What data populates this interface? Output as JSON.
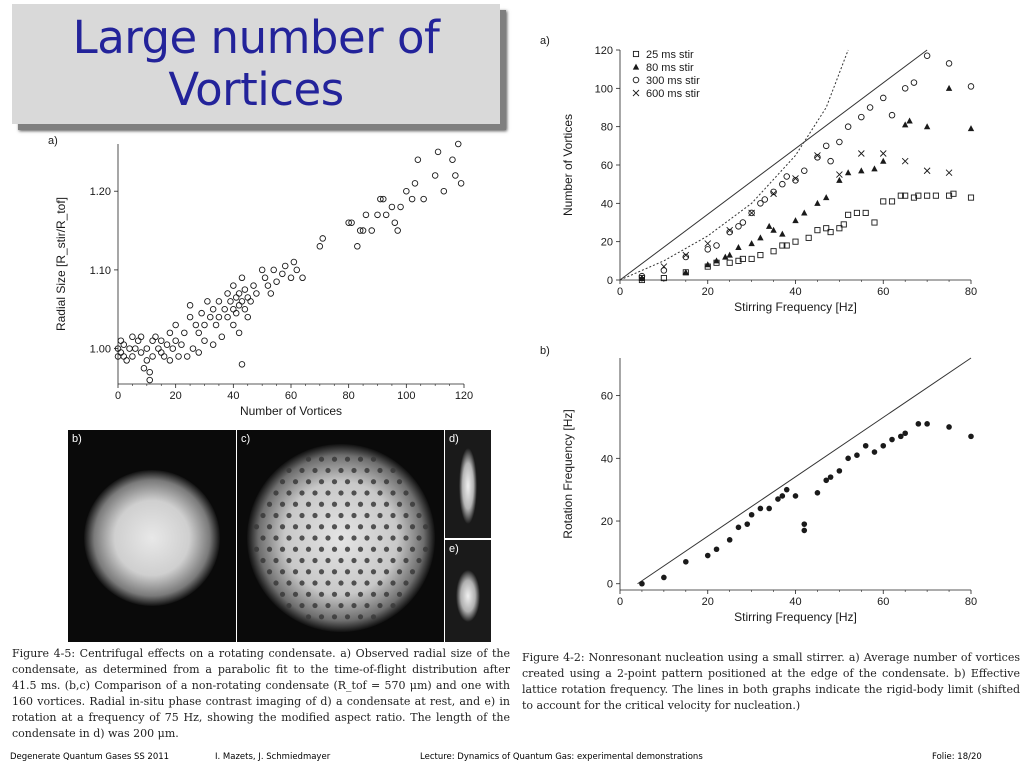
{
  "title": {
    "line1": "Large number of",
    "line2": "Vortices"
  },
  "colors": {
    "title": "#23239a",
    "title_box": "#d9d9d9",
    "shadow": "#7f7f7f",
    "marker": "#1a1a1a"
  },
  "chart_data": [
    {
      "id": "radial-size",
      "type": "scatter",
      "panel_label": "a)",
      "xlabel": "Number of Vortices",
      "ylabel": "Radial Size [R_stir/R_tof]",
      "xlim": [
        0,
        120
      ],
      "ylim": [
        0.955,
        1.26
      ],
      "xticks": [
        "0",
        "20",
        "40",
        "60",
        "80",
        "100",
        "120"
      ],
      "yticks": [
        "1.00",
        "1.10",
        "1.20"
      ],
      "marker": "open-circle",
      "points": [
        [
          0,
          1.0
        ],
        [
          0,
          0.99
        ],
        [
          1,
          1.01
        ],
        [
          1,
          0.995
        ],
        [
          2,
          1.005
        ],
        [
          2,
          0.99
        ],
        [
          3,
          0.985
        ],
        [
          4,
          1.0
        ],
        [
          5,
          1.015
        ],
        [
          5,
          0.99
        ],
        [
          6,
          1.0
        ],
        [
          7,
          1.01
        ],
        [
          8,
          0.995
        ],
        [
          8,
          1.015
        ],
        [
          9,
          0.975
        ],
        [
          10,
          0.985
        ],
        [
          10,
          1.0
        ],
        [
          11,
          0.96
        ],
        [
          11,
          0.97
        ],
        [
          12,
          1.01
        ],
        [
          12,
          0.99
        ],
        [
          13,
          1.015
        ],
        [
          14,
          1.0
        ],
        [
          15,
          1.01
        ],
        [
          15,
          0.995
        ],
        [
          16,
          0.99
        ],
        [
          17,
          1.005
        ],
        [
          18,
          1.02
        ],
        [
          18,
          0.985
        ],
        [
          19,
          1.0
        ],
        [
          20,
          1.03
        ],
        [
          20,
          1.01
        ],
        [
          21,
          0.99
        ],
        [
          22,
          1.005
        ],
        [
          23,
          1.02
        ],
        [
          24,
          0.99
        ],
        [
          25,
          1.04
        ],
        [
          25,
          1.055
        ],
        [
          26,
          1.0
        ],
        [
          27,
          1.03
        ],
        [
          28,
          1.02
        ],
        [
          28,
          0.995
        ],
        [
          29,
          1.045
        ],
        [
          30,
          1.01
        ],
        [
          30,
          1.03
        ],
        [
          31,
          1.06
        ],
        [
          32,
          1.04
        ],
        [
          33,
          1.05
        ],
        [
          33,
          1.005
        ],
        [
          34,
          1.03
        ],
        [
          35,
          1.06
        ],
        [
          35,
          1.04
        ],
        [
          36,
          1.015
        ],
        [
          37,
          1.05
        ],
        [
          38,
          1.07
        ],
        [
          38,
          1.04
        ],
        [
          39,
          1.06
        ],
        [
          40,
          1.05
        ],
        [
          40,
          1.08
        ],
        [
          40,
          1.03
        ],
        [
          41,
          1.065
        ],
        [
          41,
          1.045
        ],
        [
          42,
          1.07
        ],
        [
          42,
          1.02
        ],
        [
          42,
          1.055
        ],
        [
          43,
          1.06
        ],
        [
          43,
          1.09
        ],
        [
          43,
          0.98
        ],
        [
          44,
          1.05
        ],
        [
          44,
          1.075
        ],
        [
          45,
          1.065
        ],
        [
          45,
          1.04
        ],
        [
          46,
          1.06
        ],
        [
          47,
          1.08
        ],
        [
          48,
          1.07
        ],
        [
          50,
          1.1
        ],
        [
          51,
          1.09
        ],
        [
          52,
          1.08
        ],
        [
          53,
          1.07
        ],
        [
          54,
          1.1
        ],
        [
          55,
          1.085
        ],
        [
          57,
          1.095
        ],
        [
          58,
          1.105
        ],
        [
          60,
          1.09
        ],
        [
          61,
          1.11
        ],
        [
          62,
          1.1
        ],
        [
          64,
          1.09
        ],
        [
          70,
          1.13
        ],
        [
          71,
          1.14
        ],
        [
          80,
          1.16
        ],
        [
          81,
          1.16
        ],
        [
          83,
          1.13
        ],
        [
          84,
          1.15
        ],
        [
          85,
          1.15
        ],
        [
          86,
          1.17
        ],
        [
          88,
          1.15
        ],
        [
          90,
          1.17
        ],
        [
          91,
          1.19
        ],
        [
          92,
          1.19
        ],
        [
          93,
          1.17
        ],
        [
          95,
          1.18
        ],
        [
          96,
          1.16
        ],
        [
          97,
          1.15
        ],
        [
          98,
          1.18
        ],
        [
          100,
          1.2
        ],
        [
          102,
          1.19
        ],
        [
          103,
          1.21
        ],
        [
          104,
          1.24
        ],
        [
          106,
          1.19
        ],
        [
          110,
          1.22
        ],
        [
          111,
          1.25
        ],
        [
          113,
          1.2
        ],
        [
          116,
          1.24
        ],
        [
          117,
          1.22
        ],
        [
          118,
          1.26
        ],
        [
          119,
          1.21
        ]
      ]
    },
    {
      "id": "vortex-number",
      "type": "scatter",
      "panel_label": "a)",
      "xlabel": "Stirring Frequency [Hz]",
      "ylabel": "Number of Vortices",
      "xlim": [
        0,
        80
      ],
      "ylim": [
        0,
        120
      ],
      "xticks": [
        "0",
        "20",
        "40",
        "60",
        "80"
      ],
      "yticks": [
        "0",
        "20",
        "40",
        "60",
        "80",
        "100",
        "120"
      ],
      "legend_position": "top-left",
      "series": [
        {
          "name": "25 ms stir",
          "marker": "open-square",
          "points": [
            [
              5,
              0
            ],
            [
              5,
              1
            ],
            [
              10,
              1
            ],
            [
              15,
              4
            ],
            [
              20,
              7
            ],
            [
              22,
              9
            ],
            [
              25,
              9
            ],
            [
              27,
              10
            ],
            [
              28,
              11
            ],
            [
              30,
              11
            ],
            [
              32,
              13
            ],
            [
              35,
              15
            ],
            [
              37,
              18
            ],
            [
              38,
              18
            ],
            [
              40,
              20
            ],
            [
              43,
              22
            ],
            [
              45,
              26
            ],
            [
              47,
              27
            ],
            [
              48,
              25
            ],
            [
              50,
              27
            ],
            [
              51,
              29
            ],
            [
              52,
              34
            ],
            [
              54,
              35
            ],
            [
              56,
              35
            ],
            [
              58,
              30
            ],
            [
              60,
              41
            ],
            [
              62,
              41
            ],
            [
              64,
              44
            ],
            [
              65,
              44
            ],
            [
              67,
              43
            ],
            [
              68,
              44
            ],
            [
              70,
              44
            ],
            [
              72,
              44
            ],
            [
              75,
              44
            ],
            [
              76,
              45
            ],
            [
              80,
              43
            ]
          ]
        },
        {
          "name": "80 ms stir",
          "marker": "filled-triangle",
          "points": [
            [
              5,
              1
            ],
            [
              15,
              4
            ],
            [
              20,
              8
            ],
            [
              22,
              10
            ],
            [
              24,
              12
            ],
            [
              25,
              13
            ],
            [
              27,
              17
            ],
            [
              30,
              19
            ],
            [
              32,
              22
            ],
            [
              34,
              28
            ],
            [
              35,
              26
            ],
            [
              37,
              24
            ],
            [
              40,
              31
            ],
            [
              42,
              35
            ],
            [
              45,
              40
            ],
            [
              47,
              43
            ],
            [
              50,
              52
            ],
            [
              52,
              56
            ],
            [
              55,
              57
            ],
            [
              58,
              58
            ],
            [
              60,
              62
            ],
            [
              65,
              81
            ],
            [
              66,
              83
            ],
            [
              70,
              80
            ],
            [
              75,
              100
            ],
            [
              80,
              79
            ]
          ]
        },
        {
          "name": "300 ms stir",
          "marker": "open-circle",
          "points": [
            [
              5,
              2
            ],
            [
              10,
              5
            ],
            [
              15,
              12
            ],
            [
              20,
              16
            ],
            [
              22,
              18
            ],
            [
              25,
              25
            ],
            [
              27,
              28
            ],
            [
              28,
              30
            ],
            [
              30,
              35
            ],
            [
              32,
              40
            ],
            [
              33,
              42
            ],
            [
              35,
              46
            ],
            [
              37,
              50
            ],
            [
              38,
              54
            ],
            [
              40,
              52
            ],
            [
              42,
              57
            ],
            [
              45,
              64
            ],
            [
              47,
              70
            ],
            [
              48,
              62
            ],
            [
              50,
              72
            ],
            [
              52,
              80
            ],
            [
              55,
              85
            ],
            [
              57,
              90
            ],
            [
              60,
              95
            ],
            [
              62,
              86
            ],
            [
              65,
              100
            ],
            [
              67,
              103
            ],
            [
              70,
              117
            ],
            [
              75,
              113
            ],
            [
              80,
              101
            ]
          ]
        },
        {
          "name": "600 ms stir",
          "marker": "cross",
          "points": [
            [
              10,
              7
            ],
            [
              15,
              13
            ],
            [
              20,
              19
            ],
            [
              25,
              26
            ],
            [
              30,
              35
            ],
            [
              35,
              45
            ],
            [
              40,
              53
            ],
            [
              45,
              65
            ],
            [
              50,
              55
            ],
            [
              55,
              66
            ],
            [
              60,
              66
            ],
            [
              65,
              62
            ],
            [
              70,
              57
            ],
            [
              75,
              56
            ]
          ]
        }
      ],
      "lines": [
        {
          "style": "solid",
          "points": [
            [
              0,
              0
            ],
            [
              70,
              120
            ]
          ]
        },
        {
          "style": "dashed",
          "points": [
            [
              0,
              0
            ],
            [
              10,
              10
            ],
            [
              20,
              23
            ],
            [
              30,
              40
            ],
            [
              40,
              65
            ],
            [
              47,
              90
            ],
            [
              52,
              120
            ]
          ]
        }
      ]
    },
    {
      "id": "rotation-frequency",
      "type": "scatter",
      "panel_label": "b)",
      "xlabel": "Stirring Frequency [Hz]",
      "ylabel": "Rotation Frequency [Hz]",
      "xlim": [
        0,
        80
      ],
      "ylim": [
        -2,
        72
      ],
      "xticks": [
        "0",
        "20",
        "40",
        "60",
        "80"
      ],
      "yticks": [
        "0",
        "20",
        "40",
        "60"
      ],
      "marker": "filled-circle",
      "points": [
        [
          5,
          0
        ],
        [
          10,
          2
        ],
        [
          15,
          7
        ],
        [
          20,
          9
        ],
        [
          22,
          11
        ],
        [
          25,
          14
        ],
        [
          27,
          18
        ],
        [
          29,
          19
        ],
        [
          30,
          22
        ],
        [
          32,
          24
        ],
        [
          34,
          24
        ],
        [
          36,
          27
        ],
        [
          37,
          28
        ],
        [
          38,
          30
        ],
        [
          40,
          28
        ],
        [
          42,
          17
        ],
        [
          42,
          19
        ],
        [
          45,
          29
        ],
        [
          47,
          33
        ],
        [
          48,
          34
        ],
        [
          50,
          36
        ],
        [
          52,
          40
        ],
        [
          54,
          41
        ],
        [
          56,
          44
        ],
        [
          58,
          42
        ],
        [
          60,
          44
        ],
        [
          62,
          46
        ],
        [
          64,
          47
        ],
        [
          65,
          48
        ],
        [
          68,
          51
        ],
        [
          70,
          51
        ],
        [
          75,
          50
        ],
        [
          80,
          47
        ]
      ],
      "lines": [
        {
          "style": "solid",
          "points": [
            [
              4,
              0
            ],
            [
              80,
              75
            ]
          ]
        }
      ]
    }
  ],
  "images": {
    "b": {
      "label": "b)"
    },
    "c": {
      "label": "c)"
    },
    "d": {
      "label": "d)"
    },
    "e": {
      "label": "e)"
    }
  },
  "caption_left": "Figure 4-5: Centrifugal effects on a rotating condensate. a) Observed radial size of the condensate, as determined from a parabolic fit to the time-of-flight distribution after 41.5 ms. (b,c) Comparison of a non-rotating condensate (R_tof = 570 μm) and one with 160 vortices. Radial in-situ phase contrast imaging of d) a condensate at rest, and e) in rotation at a frequency of 75 Hz, showing the modified aspect ratio. The length of the condensate in d) was 200 μm.",
  "caption_right": "Figure 4-2: Nonresonant nucleation using a small stirrer. a) Average number of vortices created using a 2-point pattern positioned at the edge of the condensate. b) Effective lattice rotation frequency. The lines in both graphs indicate the rigid-body limit (shifted to account for the critical velocity for nucleation.)",
  "footer": {
    "course": "Degenerate Quantum Gases  SS 2011",
    "authors": "I. Mazets, J. Schmiedmayer",
    "lecture": "Lecture: Dynamics of Quantum Gas: experimental demonstrations",
    "slide": "Folie: 18/20"
  }
}
